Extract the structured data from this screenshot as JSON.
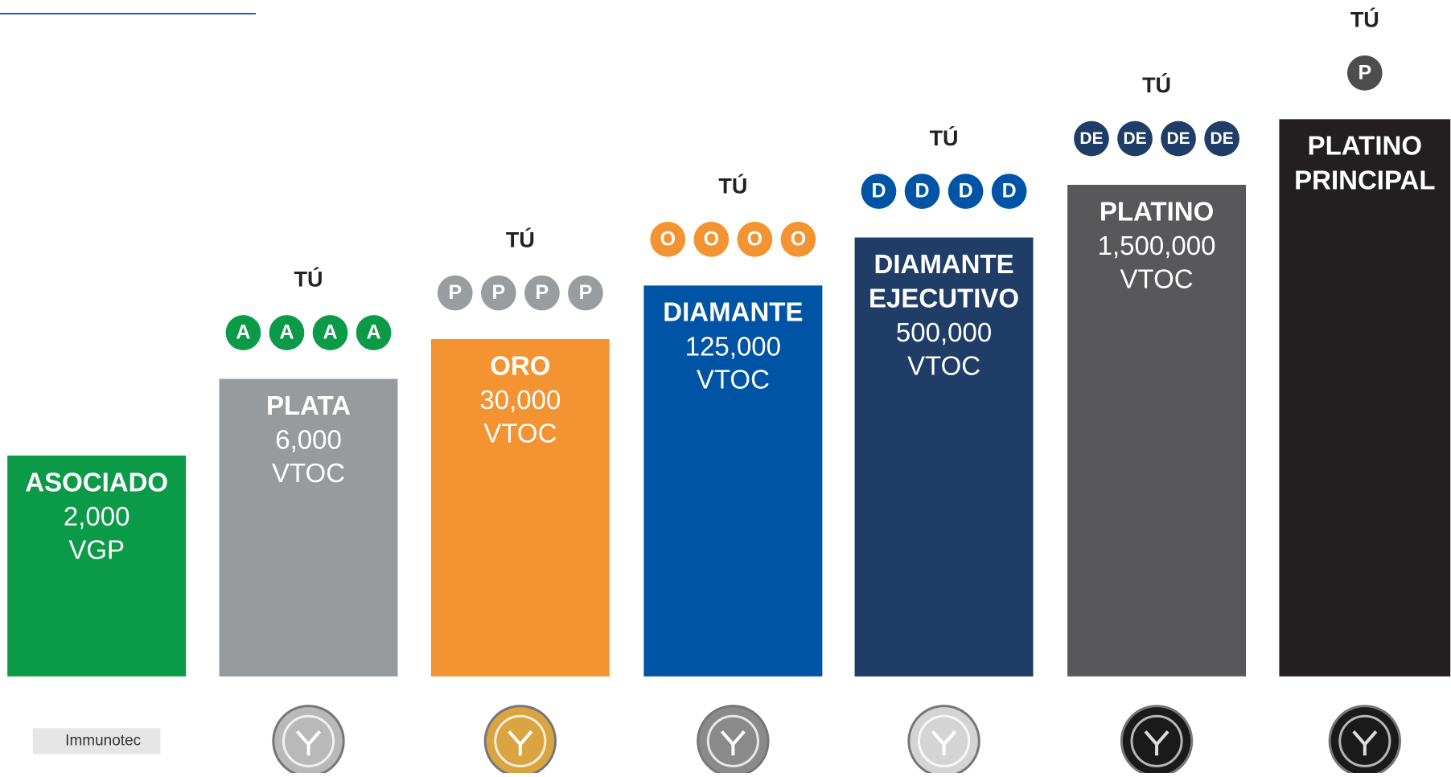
{
  "ranks": [
    {
      "name": [
        "ASOCIADO"
      ],
      "amount": "2,000",
      "unit": "VGP",
      "color": "#0a9a48",
      "medal": "Immunotec"
    },
    {
      "name": [
        "PLATA"
      ],
      "amount": "6,000",
      "unit": "VTOC",
      "color": "#989b9e",
      "you": "TÚ",
      "badges": [
        "A",
        "A",
        "A",
        "A"
      ],
      "badge_color": "#0a9a48",
      "medal_color": "#b9b9b9"
    },
    {
      "name": [
        "ORO"
      ],
      "amount": "30,000",
      "unit": "VTOC",
      "color": "#f39331",
      "you": "TÚ",
      "badges": [
        "P",
        "P",
        "P",
        "P"
      ],
      "badge_color": "#9a9da0",
      "medal_color": "#d9a441"
    },
    {
      "name": [
        "DIAMANTE"
      ],
      "amount": "125,000",
      "unit": "VTOC",
      "color": "#0054a6",
      "you": "TÚ",
      "badges": [
        "O",
        "O",
        "O",
        "O"
      ],
      "badge_color": "#f39331",
      "medal_color": "#8a8a8a"
    },
    {
      "name": [
        "DIAMANTE",
        "EJECUTIVO"
      ],
      "amount": "500,000",
      "unit": "VTOC",
      "color": "#1f3d66",
      "you": "TÚ",
      "badges": [
        "D",
        "D",
        "D",
        "D"
      ],
      "badge_color": "#0054a6",
      "medal_color": "#d4d4d4"
    },
    {
      "name": [
        "PLATINO"
      ],
      "amount": "1,500,000",
      "unit": "VTOC",
      "color": "#58585a",
      "you": "TÚ",
      "badges": [
        "DE",
        "DE",
        "DE",
        "DE"
      ],
      "badge_color": "#1f3d66",
      "medal_color": "#1a1a1a"
    },
    {
      "name": [
        "PLATINO",
        "PRINCIPAL"
      ],
      "color": "#231f20",
      "you": "TÚ",
      "badges": [
        "P"
      ],
      "badge_color": "#4d4d4f",
      "medal_color": "#1a1a1a"
    }
  ]
}
